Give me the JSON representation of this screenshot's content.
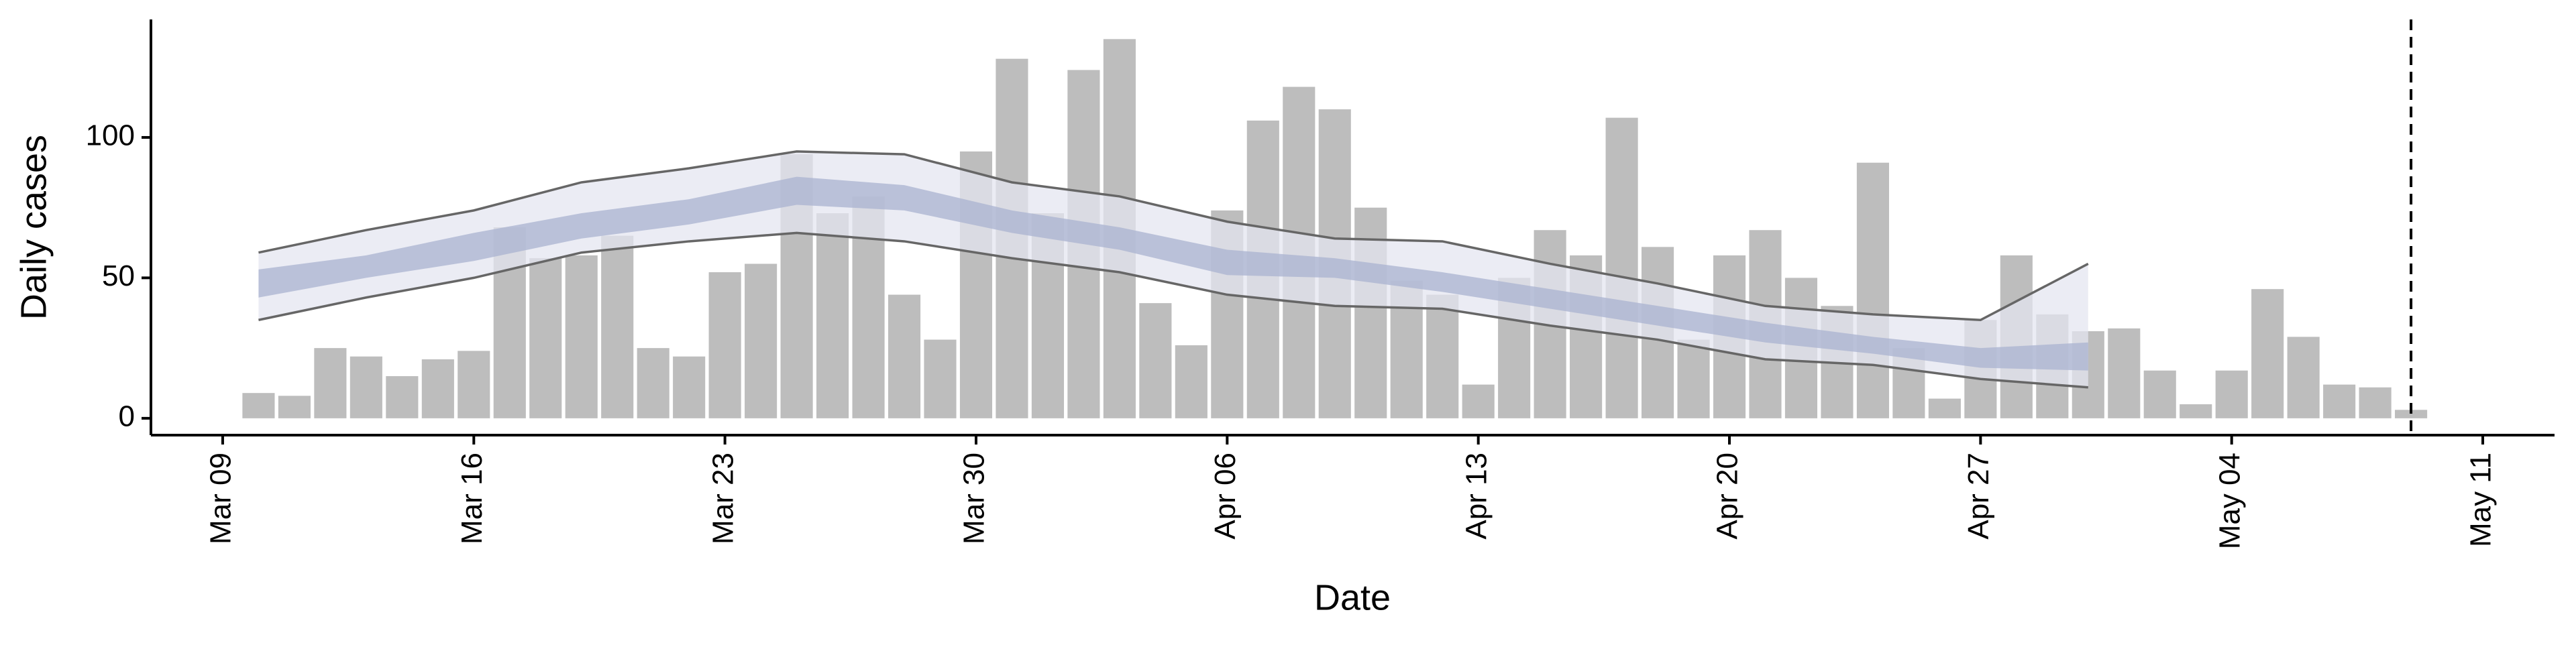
{
  "chart_data": {
    "type": "bar",
    "x_label": "Date",
    "y_label": "Daily cases",
    "x": [
      "Mar 10",
      "Mar 11",
      "Mar 12",
      "Mar 13",
      "Mar 14",
      "Mar 15",
      "Mar 16",
      "Mar 17",
      "Mar 18",
      "Mar 19",
      "Mar 20",
      "Mar 21",
      "Mar 22",
      "Mar 23",
      "Mar 24",
      "Mar 25",
      "Mar 26",
      "Mar 27",
      "Mar 28",
      "Mar 29",
      "Mar 30",
      "Mar 31",
      "Apr 01",
      "Apr 02",
      "Apr 03",
      "Apr 04",
      "Apr 05",
      "Apr 06",
      "Apr 07",
      "Apr 08",
      "Apr 09",
      "Apr 10",
      "Apr 11",
      "Apr 12",
      "Apr 13",
      "Apr 14",
      "Apr 15",
      "Apr 16",
      "Apr 17",
      "Apr 18",
      "Apr 19",
      "Apr 20",
      "Apr 21",
      "Apr 22",
      "Apr 23",
      "Apr 24",
      "Apr 25",
      "Apr 26",
      "Apr 27",
      "Apr 28",
      "Apr 29",
      "Apr 30",
      "May 01",
      "May 02",
      "May 03",
      "May 04",
      "May 05",
      "May 06",
      "May 07",
      "May 08",
      "May 09"
    ],
    "values": [
      9,
      8,
      25,
      22,
      15,
      21,
      24,
      68,
      57,
      58,
      65,
      25,
      22,
      52,
      55,
      94,
      73,
      79,
      44,
      28,
      95,
      128,
      73,
      124,
      135,
      41,
      26,
      74,
      106,
      118,
      110,
      75,
      49,
      44,
      12,
      50,
      67,
      58,
      107,
      61,
      28,
      58,
      67,
      50,
      40,
      91,
      25,
      7,
      35,
      58,
      37,
      31,
      32,
      17,
      5,
      17,
      46,
      29,
      12,
      11,
      3
    ],
    "color": "#bdbdbd",
    "bands": [
      {
        "x": [
          "Mar 10",
          "Mar 13",
          "Mar 16",
          "Mar 19",
          "Mar 22",
          "Mar 25",
          "Mar 28",
          "Mar 31",
          "Apr 03",
          "Apr 06",
          "Apr 09",
          "Apr 12",
          "Apr 15",
          "Apr 18",
          "Apr 21",
          "Apr 24",
          "Apr 27",
          "Apr 30"
        ],
        "upper": [
          59,
          67,
          74,
          84,
          89,
          95,
          94,
          84,
          79,
          70,
          64,
          63,
          55,
          48,
          40,
          37,
          35,
          55
        ],
        "lower": [
          35,
          43,
          50,
          59,
          63,
          66,
          63,
          57,
          52,
          44,
          40,
          39,
          33,
          28,
          21,
          19,
          14,
          11
        ],
        "color": "#e4e6f0",
        "line_color": "#666666"
      },
      {
        "x": [
          "Mar 10",
          "Mar 13",
          "Mar 16",
          "Mar 19",
          "Mar 22",
          "Mar 25",
          "Mar 28",
          "Mar 31",
          "Apr 03",
          "Apr 06",
          "Apr 09",
          "Apr 12",
          "Apr 15",
          "Apr 18",
          "Apr 21",
          "Apr 24",
          "Apr 27",
          "Apr 30"
        ],
        "upper": [
          53,
          58,
          66,
          73,
          78,
          86,
          83,
          74,
          68,
          60,
          57,
          52,
          46,
          40,
          34,
          29,
          25,
          27
        ],
        "lower": [
          43,
          50,
          56,
          64,
          69,
          76,
          74,
          66,
          60,
          51,
          50,
          45,
          39,
          33,
          27,
          23,
          18,
          17
        ],
        "color": "#a9b3d0"
      }
    ],
    "vline": "May 09",
    "xlim": [
      "Mar 07",
      "May 13"
    ],
    "xticks": [
      "Mar 09",
      "Mar 16",
      "Mar 23",
      "Mar 30",
      "Apr 06",
      "Apr 13",
      "Apr 20",
      "Apr 27",
      "May 04",
      "May 11"
    ],
    "ylim": [
      -6,
      142
    ],
    "yticks": [
      0,
      50,
      100
    ]
  }
}
